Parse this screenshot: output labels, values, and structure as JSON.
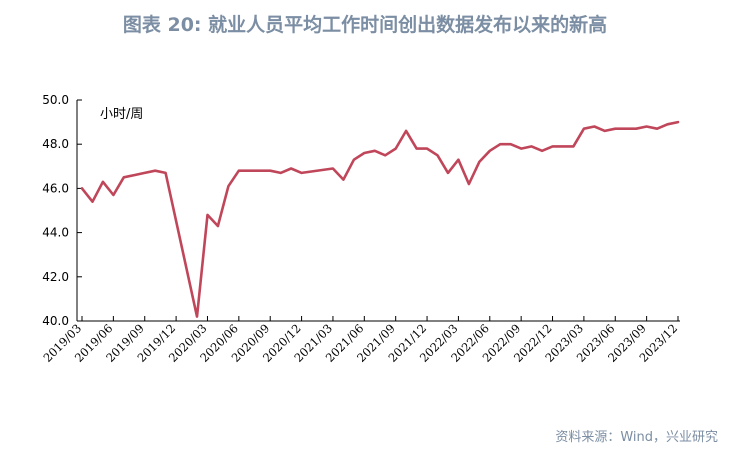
{
  "figure": {
    "title": "图表 20: 就业人员平均工作时间创出数据发布以来的新高",
    "source": "资料来源：Wind，兴业研究"
  },
  "chart_data": {
    "type": "line",
    "title": "图表 20: 就业人员平均工作时间创出数据发布以来的新高",
    "unit_label": "小时/周",
    "xlabel": "",
    "ylabel": "",
    "ylim": [
      40.0,
      50.0
    ],
    "yticks": [
      "40.0",
      "42.0",
      "44.0",
      "46.0",
      "48.0",
      "50.0"
    ],
    "xtick_labels": [
      "2019/03",
      "2019/06",
      "2019/09",
      "2019/12",
      "2020/03",
      "2020/06",
      "2020/09",
      "2020/12",
      "2021/03",
      "2021/06",
      "2021/09",
      "2021/12",
      "2022/03",
      "2022/06",
      "2022/09",
      "2022/12",
      "2023/03",
      "2023/06",
      "2023/09",
      "2023/12"
    ],
    "grid": false,
    "line_color": "#c0465a",
    "series": [
      {
        "name": "",
        "x": [
          "2019/03",
          "2019/04",
          "2019/05",
          "2019/06",
          "2019/07",
          "2019/08",
          "2019/09",
          "2019/10",
          "2019/11",
          "2019/12",
          "2020/01",
          "2020/02",
          "2020/03",
          "2020/04",
          "2020/05",
          "2020/06",
          "2020/07",
          "2020/08",
          "2020/09",
          "2020/10",
          "2020/11",
          "2020/12",
          "2021/01",
          "2021/02",
          "2021/03",
          "2021/04",
          "2021/05",
          "2021/06",
          "2021/07",
          "2021/08",
          "2021/09",
          "2021/10",
          "2021/11",
          "2021/12",
          "2022/01",
          "2022/02",
          "2022/03",
          "2022/04",
          "2022/05",
          "2022/06",
          "2022/07",
          "2022/08",
          "2022/09",
          "2022/10",
          "2022/11",
          "2022/12",
          "2023/01",
          "2023/02",
          "2023/03",
          "2023/04",
          "2023/05",
          "2023/06",
          "2023/07",
          "2023/08",
          "2023/09",
          "2023/10",
          "2023/11",
          "2023/12"
        ],
        "values": [
          46.0,
          45.4,
          46.3,
          45.7,
          46.5,
          46.6,
          46.7,
          46.8,
          46.7,
          null,
          null,
          40.2,
          44.8,
          44.3,
          46.1,
          46.8,
          46.8,
          46.8,
          46.8,
          46.7,
          46.9,
          46.7,
          null,
          null,
          46.9,
          46.4,
          47.3,
          47.6,
          47.7,
          47.5,
          47.8,
          48.6,
          47.8,
          47.8,
          47.5,
          46.7,
          47.3,
          46.2,
          47.2,
          47.7,
          48.0,
          48.0,
          47.8,
          47.9,
          47.7,
          47.9,
          47.9,
          47.9,
          48.7,
          48.8,
          48.6,
          48.7,
          48.7,
          48.7,
          48.8,
          48.7,
          48.9,
          49.0
        ]
      }
    ]
  }
}
